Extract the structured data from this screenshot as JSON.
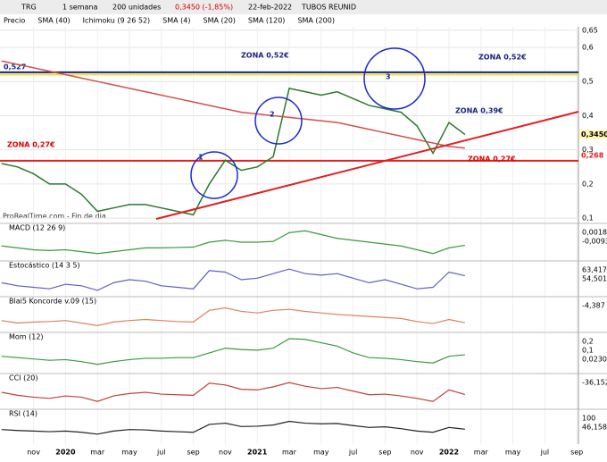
{
  "toolbar": {
    "symbol": "TRG",
    "period": "1 semana",
    "units": "200 unidades",
    "quote": "0,3450 (-1,85%)",
    "date": "22-feb-2022",
    "name": "TUBOS REUNID"
  },
  "legend": [
    "Precio",
    "SMA (40)",
    "Ichimoku (9 26 52)",
    "SMA (4)",
    "SMA (20)",
    "SMA (120)",
    "SMA (200)"
  ],
  "footer": "ProRealTime.com - Fin de dia",
  "chart_data": {
    "type": "line",
    "categories": [
      null,
      null,
      "nov",
      null,
      "2020",
      null,
      "mar",
      null,
      "may",
      null,
      "jul",
      null,
      "sep",
      null,
      "nov",
      null,
      "2021",
      null,
      "mar",
      null,
      "may",
      null,
      "jul",
      null,
      "sep",
      null,
      "nov",
      null,
      "2022",
      null,
      "mar",
      null,
      "may",
      null,
      "jul",
      null,
      "sep"
    ],
    "ylim": [
      0.09,
      0.66
    ],
    "yticks": [
      {
        "value": 0.1,
        "label": "0,1"
      },
      {
        "value": 0.2,
        "label": "0,2"
      },
      {
        "value": 0.3,
        "label": "0,3"
      },
      {
        "value": 0.4,
        "label": "0,4"
      },
      {
        "value": 0.5,
        "label": "0,5"
      },
      {
        "value": 0.6,
        "label": "0,6"
      },
      {
        "value": 0.65,
        "label": "0,65"
      }
    ],
    "series": [
      {
        "name": "Precio",
        "color": "#2a7a2a",
        "values": [
          0.26,
          0.25,
          0.23,
          0.2,
          0.2,
          0.17,
          0.12,
          0.13,
          0.14,
          0.14,
          0.13,
          0.12,
          0.11,
          0.2,
          0.27,
          0.24,
          0.25,
          0.28,
          0.48,
          0.47,
          0.46,
          0.47,
          0.45,
          0.43,
          0.42,
          0.41,
          0.37,
          0.29,
          0.38,
          0.345,
          null,
          null,
          null,
          null,
          null,
          null,
          null
        ]
      },
      {
        "name": "SMA (200)",
        "color": "#d05050",
        "values": [
          0.56,
          0.55,
          0.54,
          0.53,
          0.52,
          0.51,
          0.5,
          0.49,
          0.48,
          0.47,
          0.46,
          0.45,
          0.44,
          0.43,
          0.42,
          0.41,
          0.405,
          0.4,
          0.395,
          0.39,
          0.385,
          0.38,
          0.37,
          0.36,
          0.35,
          0.34,
          0.33,
          0.32,
          0.31,
          0.305,
          null,
          null,
          null,
          null,
          null,
          null,
          null
        ]
      }
    ],
    "levels": [
      {
        "value": 0.527,
        "label": "0,527",
        "color": "#1a237e"
      },
      {
        "value": 0.52,
        "color": "#f0e040"
      },
      {
        "value": 0.268,
        "label": "0,268",
        "color": "#e02020"
      }
    ],
    "last": {
      "value": 0.345,
      "label": "0,3450"
    },
    "annotations": [
      "ZONA 0,52€",
      "ZONA 0,52€",
      "ZONA 0,39€",
      "ZONA 0,27€",
      "ZONA 0,27€",
      "1",
      "2",
      "3"
    ]
  },
  "panels": [
    {
      "title": "MACD (12 26 9)",
      "color": "#3a9a3a",
      "ylim": [
        -0.03,
        0.05
      ],
      "values": [
        0.0,
        -0.005,
        -0.01,
        -0.012,
        -0.01,
        -0.015,
        -0.02,
        -0.015,
        -0.01,
        -0.005,
        -0.005,
        -0.004,
        -0.003,
        0.01,
        0.015,
        0.01,
        0.01,
        0.012,
        0.035,
        0.04,
        0.03,
        0.02,
        0.015,
        0.01,
        0.005,
        0.0,
        -0.01,
        -0.02,
        -0.005,
        0.0018
      ],
      "labels": [
        "0,0018",
        "-0,0093"
      ]
    },
    {
      "title": "Estocástico (14 3 5)",
      "color": "#6060c0",
      "ylim": [
        0,
        100
      ],
      "values": [
        40,
        30,
        25,
        20,
        35,
        30,
        15,
        40,
        50,
        45,
        30,
        25,
        20,
        80,
        75,
        50,
        55,
        70,
        85,
        70,
        65,
        70,
        55,
        40,
        50,
        35,
        20,
        25,
        75,
        63
      ],
      "labels": [
        "63,417",
        "54,501"
      ]
    },
    {
      "title": "Blai5 Koncorde v.09 (15)",
      "color": "#e08060",
      "ylim": [
        -20,
        40
      ],
      "values": [
        0,
        -5,
        -3,
        -2,
        0,
        -5,
        -10,
        -3,
        0,
        2,
        0,
        -2,
        -3,
        20,
        25,
        18,
        15,
        20,
        22,
        18,
        15,
        12,
        10,
        8,
        6,
        4,
        -2,
        -6,
        2,
        -4.387
      ],
      "labels": [
        "-4,387"
      ]
    },
    {
      "title": "Mom (12)",
      "color": "#3a9a3a",
      "ylim": [
        -0.15,
        0.3
      ],
      "values": [
        0,
        -0.02,
        -0.04,
        -0.06,
        -0.05,
        -0.08,
        -0.12,
        -0.08,
        -0.05,
        -0.03,
        -0.03,
        -0.02,
        -0.02,
        0.05,
        0.12,
        0.1,
        0.09,
        0.12,
        0.26,
        0.25,
        0.2,
        0.15,
        0.05,
        -0.02,
        -0.03,
        -0.05,
        -0.08,
        -0.1,
        0.0,
        0.023
      ],
      "labels": [
        "0,2",
        "0,1",
        "0,0230"
      ]
    },
    {
      "title": "CCI (20)",
      "color": "#c04040",
      "ylim": [
        -250,
        250
      ],
      "values": [
        0,
        -50,
        -80,
        -100,
        -60,
        -80,
        -150,
        -60,
        -20,
        0,
        -30,
        -40,
        -50,
        150,
        120,
        50,
        40,
        90,
        160,
        100,
        60,
        80,
        20,
        -40,
        -30,
        -60,
        -100,
        -150,
        40,
        -36.152
      ],
      "labels": [
        "-36,152"
      ]
    },
    {
      "title": "RSI (14)",
      "color": "#222222",
      "ylim": [
        0,
        100
      ],
      "values": [
        45,
        42,
        40,
        38,
        40,
        36,
        30,
        40,
        45,
        44,
        40,
        38,
        36,
        62,
        66,
        55,
        56,
        60,
        72,
        66,
        64,
        65,
        58,
        52,
        54,
        48,
        40,
        36,
        52,
        46.158
      ],
      "labels": [
        "100",
        "46,158"
      ]
    }
  ]
}
